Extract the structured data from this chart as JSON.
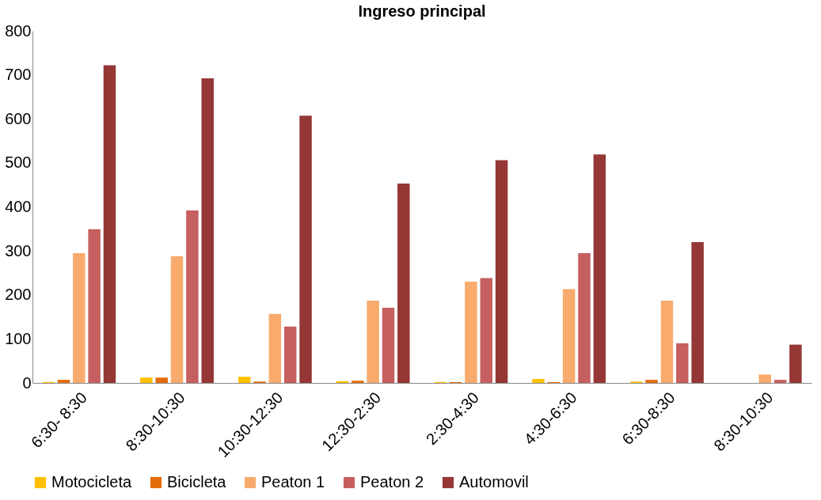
{
  "chart_data": {
    "type": "bar",
    "title": "Ingreso principal",
    "categories": [
      "6:30- 8:30",
      "8:30-10:30",
      "10:30-12:30",
      "12:30-2:30",
      "2:30-4:30",
      "4:30-6:30",
      "6:30-8:30",
      "8:30-10:30"
    ],
    "series": [
      {
        "name": "Motocicleta",
        "color": "#ffc000",
        "values": [
          2,
          12,
          14,
          4,
          2,
          9,
          3,
          0
        ]
      },
      {
        "name": "Bicicleta",
        "color": "#e46c0a",
        "values": [
          7,
          12,
          3,
          5,
          2,
          2,
          7,
          0
        ]
      },
      {
        "name": "Peaton 1",
        "color": "#f8ab6c",
        "values": [
          295,
          288,
          157,
          187,
          230,
          213,
          187,
          19
        ]
      },
      {
        "name": "Peaton 2",
        "color": "#c65f5f",
        "values": [
          349,
          392,
          128,
          171,
          238,
          295,
          90,
          7
        ]
      },
      {
        "name": "Automovil",
        "color": "#953735",
        "values": [
          722,
          692,
          607,
          453,
          506,
          519,
          320,
          87
        ]
      }
    ],
    "ylim": [
      0,
      800
    ],
    "yticks": [
      0,
      100,
      200,
      300,
      400,
      500,
      600,
      700,
      800
    ],
    "grid": false,
    "legend": "bottom"
  }
}
